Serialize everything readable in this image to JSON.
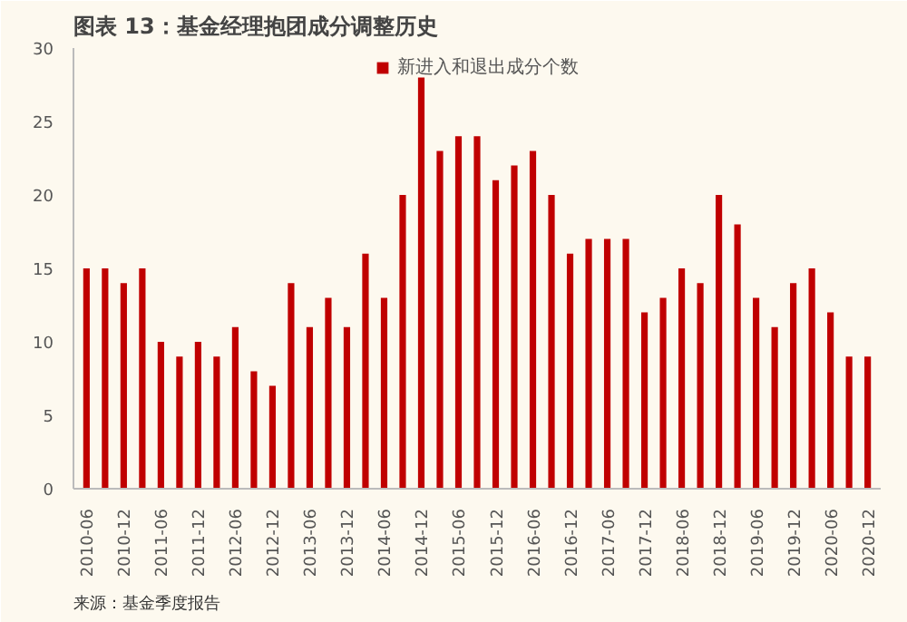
{
  "chart_data": {
    "type": "bar",
    "title": "图表 13：基金经理抱团成分调整历史",
    "categories": [
      "2010-06",
      null,
      "2010-12",
      null,
      "2011-06",
      null,
      "2011-12",
      null,
      "2012-06",
      null,
      "2012-12",
      null,
      "2013-06",
      null,
      "2013-12",
      null,
      "2014-06",
      null,
      "2014-12",
      null,
      "2015-06",
      null,
      "2015-12",
      null,
      "2016-06",
      null,
      "2016-12",
      null,
      "2017-06",
      null,
      "2017-12",
      null,
      "2018-06",
      null,
      "2018-12",
      null,
      "2019-06",
      null,
      "2019-12",
      null,
      "2020-06",
      null,
      "2020-12"
    ],
    "series": [
      {
        "name": "新进入和退出成分个数",
        "color": "#c00000",
        "values": [
          15,
          15,
          14,
          15,
          10,
          9,
          10,
          9,
          11,
          8,
          7,
          14,
          11,
          13,
          11,
          16,
          13,
          20,
          28,
          23,
          24,
          24,
          21,
          22,
          23,
          20,
          16,
          17,
          17,
          17,
          12,
          13,
          15,
          14,
          20,
          18,
          13,
          11,
          14,
          15,
          12,
          9,
          9
        ]
      }
    ],
    "ylim": [
      0,
      30
    ],
    "yticks": [
      0,
      5,
      10,
      15,
      20,
      25,
      30
    ],
    "grid": false,
    "legend": "top",
    "annotations": [
      "来源：基金季度报告"
    ]
  }
}
